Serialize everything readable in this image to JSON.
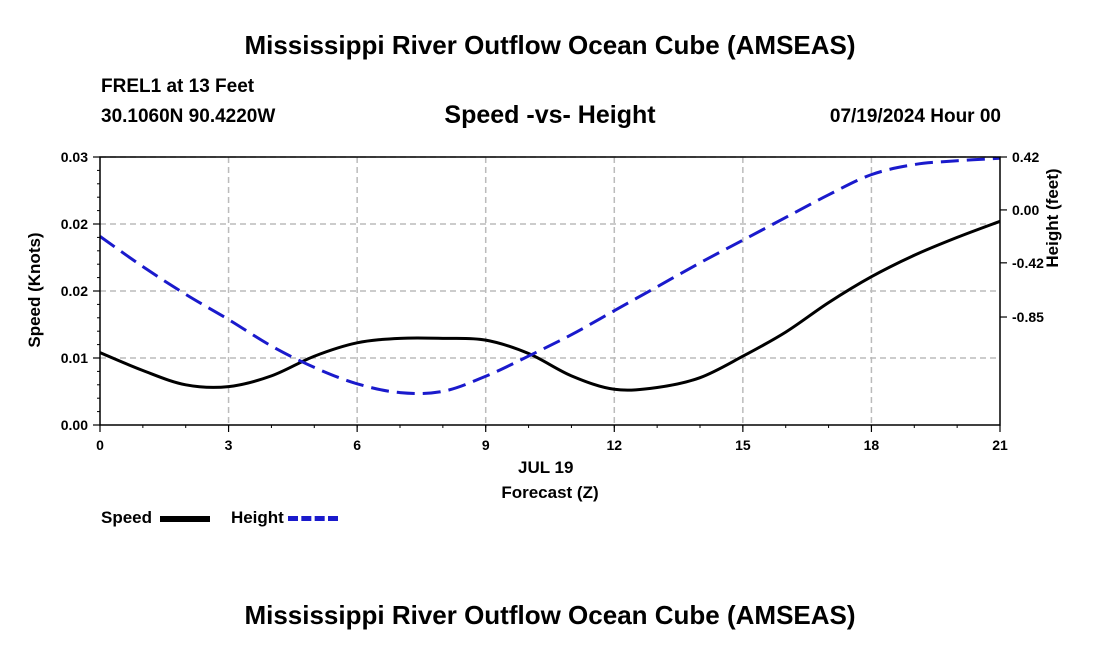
{
  "header": {
    "title": "Mississippi River Outflow Ocean Cube (AMSEAS)",
    "station": "FREL1 at 13 Feet",
    "coords": "30.1060N  90.4220W",
    "subtitle": "Speed -vs- Height",
    "datetime": "07/19/2024 Hour 00"
  },
  "footer": {
    "title": "Mississippi River Outflow Ocean Cube (AMSEAS)"
  },
  "legend": {
    "speed_label": "Speed",
    "height_label": "Height"
  },
  "colors": {
    "speed": "#000000",
    "height": "#1a1acc",
    "grid": "#bbbbbb"
  },
  "chart_data": {
    "type": "line",
    "title": "Speed -vs- Height",
    "xlabel": "Forecast (Z)",
    "xlabel_date": "JUL 19",
    "ylabel_left": "Speed (Knots)",
    "ylabel_right": "Height (feet)",
    "xlim": [
      0,
      21
    ],
    "ylim_left": [
      0,
      0.03
    ],
    "ylim_right": [
      -1.707,
      0.42
    ],
    "x_ticks": [
      0,
      3,
      6,
      9,
      12,
      15,
      18,
      21
    ],
    "x_tick_labels": [
      "0",
      "3",
      "6",
      "9",
      "12",
      "15",
      "18",
      "21"
    ],
    "y_left_ticks": [
      0,
      0.0075,
      0.015,
      0.0225,
      0.03
    ],
    "y_left_tick_labels": [
      "0.00",
      "0.01",
      "0.02",
      "0.02",
      "0.03"
    ],
    "y_right_ticks": [
      0.42,
      0.0,
      -0.42,
      -0.85
    ],
    "y_right_tick_labels": [
      "0.42",
      "0.00",
      "-0.42",
      "-0.85"
    ],
    "grid": true,
    "legend_position": "bottom-left",
    "series": [
      {
        "name": "Speed",
        "axis": "left",
        "style": "solid",
        "x": [
          0,
          1,
          2,
          3,
          4,
          5,
          6,
          7,
          8,
          9,
          10,
          11,
          12,
          13,
          14,
          15,
          16,
          17,
          18,
          19,
          20,
          21
        ],
        "values": [
          0.0081,
          0.0061,
          0.0045,
          0.0043,
          0.0055,
          0.0077,
          0.0092,
          0.0097,
          0.0097,
          0.0095,
          0.008,
          0.0055,
          0.004,
          0.0042,
          0.0053,
          0.0077,
          0.0104,
          0.0137,
          0.0166,
          0.019,
          0.021,
          0.0228
        ]
      },
      {
        "name": "Height",
        "axis": "right",
        "style": "dashed",
        "x": [
          0,
          1,
          2,
          3,
          4,
          5,
          6,
          7,
          8,
          9,
          10,
          11,
          12,
          13,
          14,
          15,
          16,
          17,
          18,
          19,
          20,
          21
        ],
        "values": [
          -0.21,
          -0.45,
          -0.67,
          -0.87,
          -1.08,
          -1.25,
          -1.38,
          -1.45,
          -1.44,
          -1.32,
          -1.16,
          -0.99,
          -0.8,
          -0.61,
          -0.42,
          -0.24,
          -0.06,
          0.12,
          0.28,
          0.36,
          0.39,
          0.41
        ]
      }
    ]
  }
}
